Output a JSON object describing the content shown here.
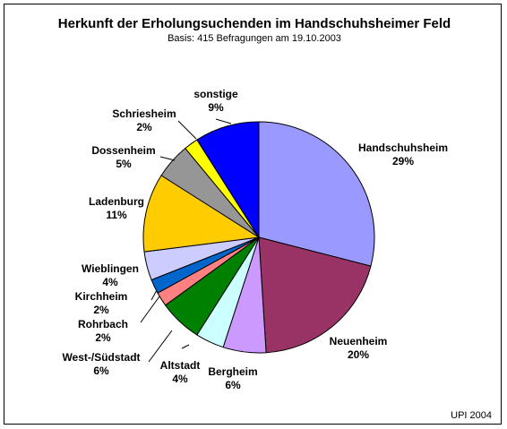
{
  "chart_data": {
    "type": "pie",
    "title": "Herkunft der Erholungsuchenden im Handschuhsheimer Feld",
    "subtitle": "Basis: 415 Befragungen am 19.10.2003",
    "footer": "UPI 2004",
    "slices": [
      {
        "name": "Handschuhsheim",
        "label": "29%",
        "value": 29,
        "color": "#9999ff"
      },
      {
        "name": "Neuenheim",
        "label": "20%",
        "value": 20,
        "color": "#993366"
      },
      {
        "name": "Bergheim",
        "label": "6%",
        "value": 6,
        "color": "#cc99ff"
      },
      {
        "name": "Altstadt",
        "label": "4%",
        "value": 4,
        "color": "#ccffff"
      },
      {
        "name": "West-/Südstadt",
        "label": "6%",
        "value": 6,
        "color": "#008000"
      },
      {
        "name": "Rohrbach",
        "label": "2%",
        "value": 2,
        "color": "#ff8080"
      },
      {
        "name": "Kirchheim",
        "label": "2%",
        "value": 2,
        "color": "#0066cc"
      },
      {
        "name": "Wieblingen",
        "label": "4%",
        "value": 4,
        "color": "#ccccff"
      },
      {
        "name": "Ladenburg",
        "label": "11%",
        "value": 11,
        "color": "#ffcc00"
      },
      {
        "name": "Dossenheim",
        "label": "5%",
        "value": 5,
        "color": "#969696"
      },
      {
        "name": "Schriesheim",
        "label": "2%",
        "value": 2,
        "color": "#ffff00"
      },
      {
        "name": "sonstige",
        "label": "9%",
        "value": 9,
        "color": "#0000ff"
      }
    ]
  }
}
